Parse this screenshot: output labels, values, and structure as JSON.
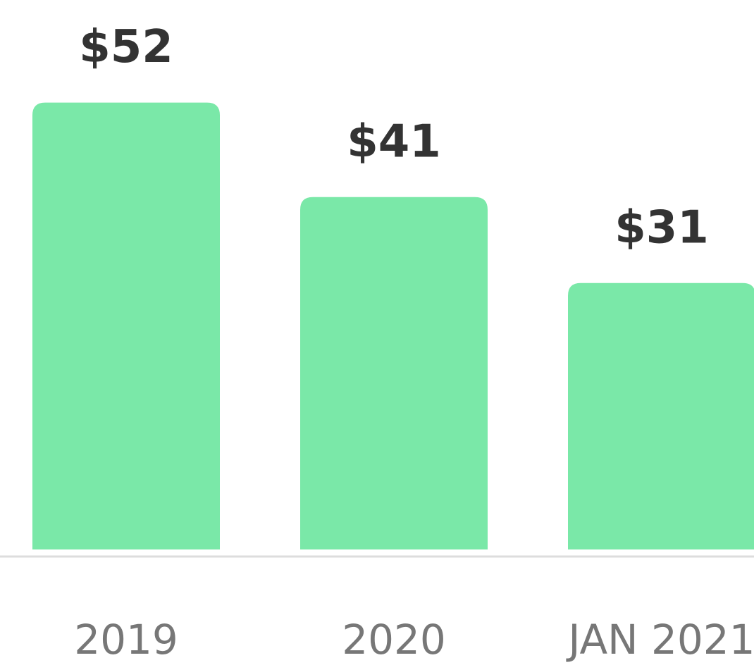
{
  "chart_data": {
    "type": "bar",
    "categories": [
      "2019",
      "2020",
      "JAN 2021"
    ],
    "values": [
      52,
      41,
      31
    ],
    "value_labels": [
      "$52",
      "$41",
      "$31"
    ],
    "color": "#7ae8a8"
  }
}
